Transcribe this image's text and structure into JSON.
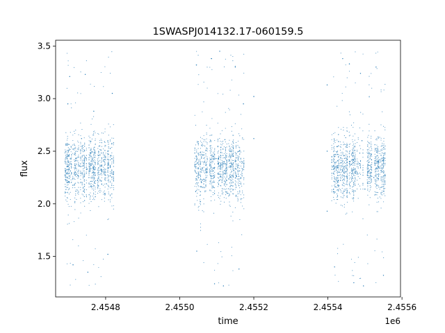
{
  "chart_data": {
    "type": "scatter",
    "title": "1SWASPJ014132.17-060159.5",
    "xlabel": "time",
    "ylabel": "flux",
    "x_offset_label": "1e6",
    "xlim": [
      2454665,
      2455596
    ],
    "ylim": [
      1.115,
      3.555
    ],
    "x_ticks": [
      {
        "value": 2454800,
        "label": "2.4548"
      },
      {
        "value": 2455000,
        "label": "2.4550"
      },
      {
        "value": 2455200,
        "label": "2.4552"
      },
      {
        "value": 2455400,
        "label": "2.4554"
      },
      {
        "value": 2455600,
        "label": "2.4556"
      }
    ],
    "y_ticks": [
      {
        "value": 1.5,
        "label": "1.5"
      },
      {
        "value": 2.0,
        "label": "2.0"
      },
      {
        "value": 2.5,
        "label": "2.5"
      },
      {
        "value": 3.0,
        "label": "3.0"
      },
      {
        "value": 3.5,
        "label": "3.5"
      }
    ],
    "grid": false,
    "marker_color": "#1f77b4",
    "series": [
      {
        "season_ranges": [
          [
            2454690,
            2454822
          ],
          [
            2455040,
            2455175
          ],
          [
            2455410,
            2455555
          ]
        ],
        "median_flux": 2.34,
        "core_flux_range": [
          2.05,
          2.65
        ],
        "outlier_flux_range": [
          1.2,
          3.45
        ],
        "points": [
          [
            2454692,
            2.31
          ],
          [
            2454696,
            2.45
          ],
          [
            2454700,
            2.21
          ],
          [
            2454704,
            2.38
          ],
          [
            2454708,
            2.29
          ],
          [
            2454712,
            2.52
          ],
          [
            2454716,
            2.18
          ],
          [
            2454720,
            2.41
          ],
          [
            2454725,
            2.27
          ],
          [
            2454730,
            2.36
          ],
          [
            2454735,
            2.62
          ],
          [
            2454740,
            2.12
          ],
          [
            2454745,
            2.44
          ],
          [
            2454750,
            2.33
          ],
          [
            2454755,
            2.25
          ],
          [
            2454760,
            2.48
          ],
          [
            2454766,
            2.3
          ],
          [
            2454772,
            2.39
          ],
          [
            2454778,
            2.22
          ],
          [
            2454784,
            2.55
          ],
          [
            2454790,
            2.31
          ],
          [
            2454796,
            2.42
          ],
          [
            2454802,
            2.19
          ],
          [
            2454808,
            2.37
          ],
          [
            2454814,
            2.46
          ],
          [
            2454820,
            2.28
          ],
          [
            2454703,
            3.21
          ],
          [
            2454712,
            1.42
          ],
          [
            2454745,
            3.23
          ],
          [
            2454752,
            1.35
          ],
          [
            2454806,
            1.52
          ],
          [
            2454818,
            3.05
          ],
          [
            2454698,
            2.95
          ],
          [
            2454768,
            2.88
          ],
          [
            2455042,
            2.35
          ],
          [
            2455050,
            2.48
          ],
          [
            2455058,
            2.21
          ],
          [
            2455066,
            2.4
          ],
          [
            2455074,
            2.3
          ],
          [
            2455082,
            2.55
          ],
          [
            2455090,
            2.16
          ],
          [
            2455098,
            2.43
          ],
          [
            2455106,
            2.28
          ],
          [
            2455114,
            2.37
          ],
          [
            2455122,
            2.61
          ],
          [
            2455130,
            2.1
          ],
          [
            2455138,
            2.45
          ],
          [
            2455146,
            2.32
          ],
          [
            2455154,
            2.26
          ],
          [
            2455162,
            2.5
          ],
          [
            2455170,
            2.33
          ],
          [
            2455045,
            3.32
          ],
          [
            2455086,
            3.38
          ],
          [
            2455094,
            1.24
          ],
          [
            2455108,
            3.45
          ],
          [
            2455118,
            1.22
          ],
          [
            2455150,
            3.3
          ],
          [
            2455160,
            1.38
          ],
          [
            2455046,
            1.55
          ],
          [
            2455172,
            2.95
          ],
          [
            2455200,
            3.02
          ],
          [
            2455200,
            2.62
          ],
          [
            2455412,
            2.35
          ],
          [
            2455420,
            2.47
          ],
          [
            2455428,
            2.22
          ],
          [
            2455436,
            2.39
          ],
          [
            2455444,
            2.29
          ],
          [
            2455452,
            2.56
          ],
          [
            2455460,
            2.17
          ],
          [
            2455468,
            2.42
          ],
          [
            2455476,
            2.31
          ],
          [
            2455484,
            2.38
          ],
          [
            2455492,
            2.6
          ],
          [
            2455500,
            2.14
          ],
          [
            2455508,
            2.44
          ],
          [
            2455516,
            2.3
          ],
          [
            2455524,
            2.25
          ],
          [
            2455532,
            2.49
          ],
          [
            2455540,
            2.34
          ],
          [
            2455548,
            2.41
          ],
          [
            2455554,
            2.27
          ],
          [
            2455440,
            3.38
          ],
          [
            2455458,
            3.33
          ],
          [
            2455470,
            1.25
          ],
          [
            2455488,
            3.24
          ],
          [
            2455496,
            1.22
          ],
          [
            2455530,
            3.3
          ],
          [
            2455550,
            1.32
          ],
          [
            2455398,
            3.13
          ],
          [
            2455398,
            1.93
          ],
          [
            2455398,
            2.5
          ],
          [
            2455418,
            1.4
          ]
        ]
      }
    ]
  }
}
